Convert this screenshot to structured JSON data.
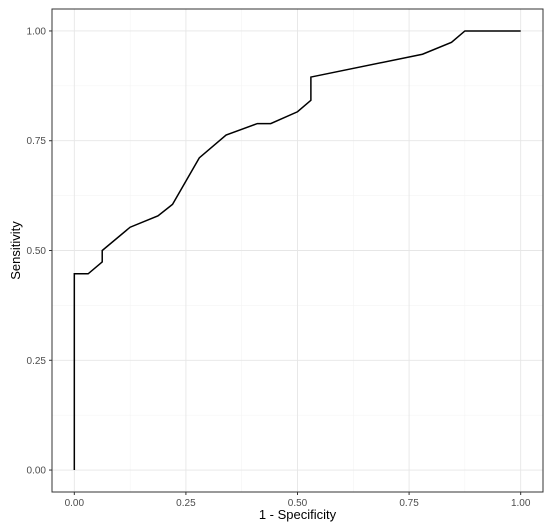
{
  "chart_data": {
    "type": "line",
    "title": "",
    "xlabel": "1 - Specificity",
    "ylabel": "Sensitivity",
    "xlim": [
      -0.05,
      1.05
    ],
    "ylim": [
      -0.05,
      1.05
    ],
    "x_ticks": [
      0,
      0.25,
      0.5,
      0.75,
      1
    ],
    "x_tick_labels": [
      "0.00",
      "0.25",
      "0.50",
      "0.75",
      "1.00"
    ],
    "y_ticks": [
      0,
      0.25,
      0.5,
      0.75,
      1
    ],
    "y_tick_labels": [
      "0.00",
      "0.25",
      "0.50",
      "0.75",
      "1.00"
    ],
    "grid": true,
    "theme": "bw",
    "series": [
      {
        "color": "#000000",
        "x": [
          0,
          0,
          0.031,
          0.0625,
          0.0625,
          0.125,
          0.1875,
          0.22,
          0.28,
          0.34,
          0.41,
          0.44,
          0.5,
          0.53,
          0.53,
          0.78,
          0.845,
          0.875,
          1.0
        ],
        "y": [
          0,
          0.447,
          0.447,
          0.474,
          0.5,
          0.553,
          0.579,
          0.605,
          0.711,
          0.763,
          0.789,
          0.789,
          0.816,
          0.842,
          0.895,
          0.947,
          0.974,
          1.0,
          1.0
        ]
      }
    ]
  }
}
